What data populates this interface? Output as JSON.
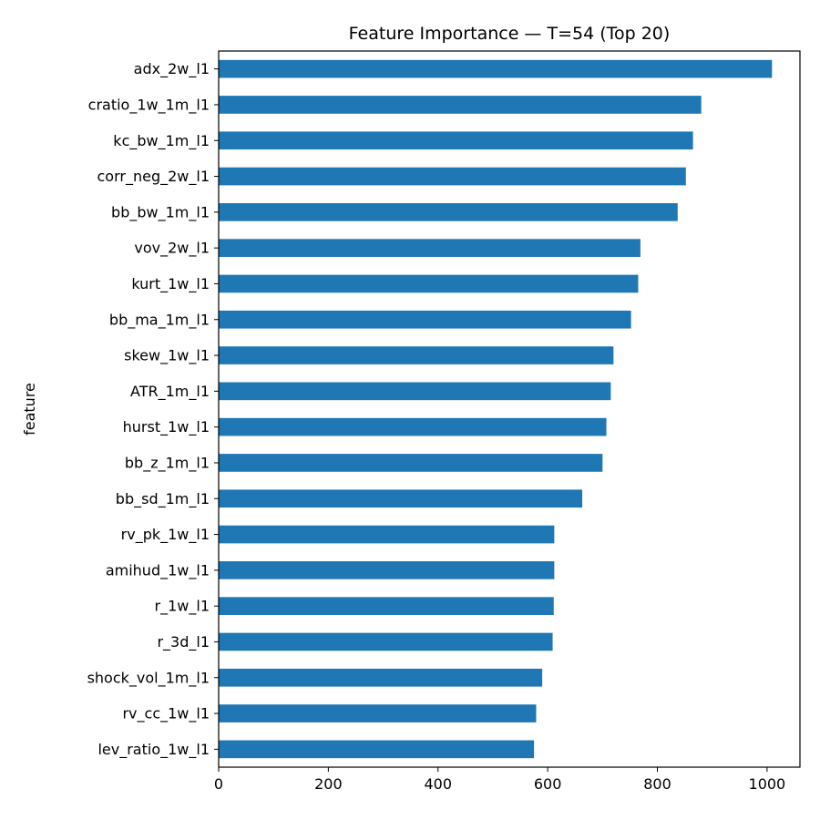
{
  "chart_data": {
    "type": "bar",
    "orientation": "horizontal",
    "title": "Feature Importance — T=54 (Top 20)",
    "xlabel": "",
    "ylabel": "feature",
    "xlim": [
      0,
      1060
    ],
    "xticks": [
      0,
      200,
      400,
      600,
      800,
      1000
    ],
    "grid": false,
    "bar_color": "#1f77b4",
    "categories": [
      "adx_2w_l1",
      "cratio_1w_1m_l1",
      "kc_bw_1m_l1",
      "corr_neg_2w_l1",
      "bb_bw_1m_l1",
      "vov_2w_l1",
      "kurt_1w_l1",
      "bb_ma_1m_l1",
      "skew_1w_l1",
      "ATR_1m_l1",
      "hurst_1w_l1",
      "bb_z_1m_l1",
      "bb_sd_1m_l1",
      "rv_pk_1w_l1",
      "amihud_1w_l1",
      "r_1w_l1",
      "r_3d_l1",
      "shock_vol_1m_l1",
      "rv_cc_1w_l1",
      "lev_ratio_1w_l1"
    ],
    "values": [
      1009,
      880,
      865,
      852,
      837,
      769,
      765,
      752,
      720,
      715,
      707,
      700,
      663,
      612,
      612,
      611,
      609,
      590,
      579,
      575
    ]
  }
}
